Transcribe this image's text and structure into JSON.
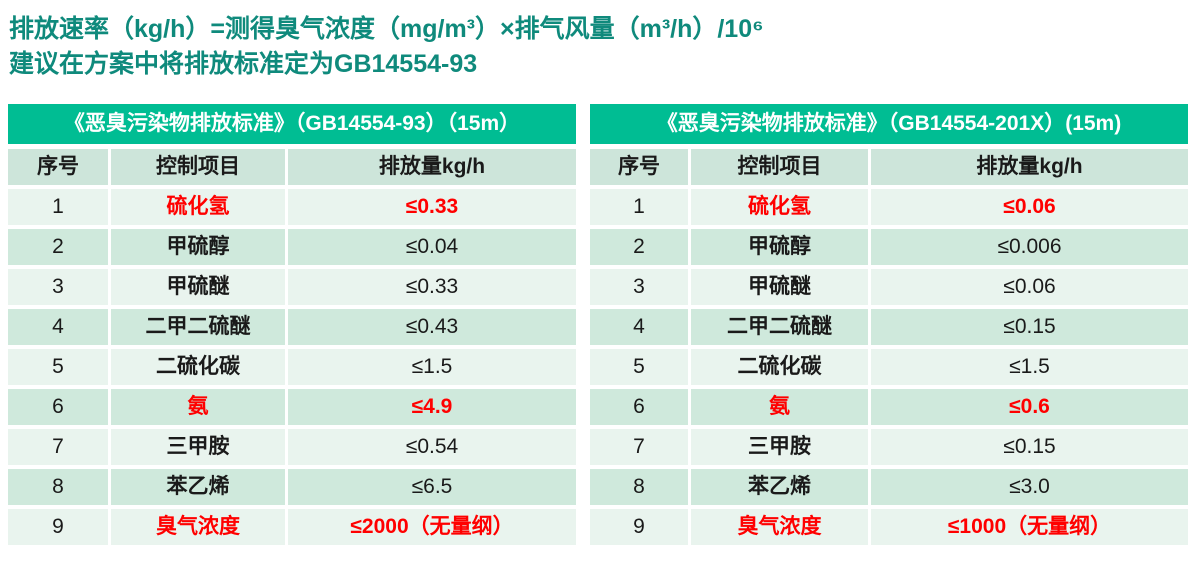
{
  "intro": {
    "line1": "排放速率（kg/h）=测得臭气浓度（mg/m³）×排气风量（m³/h）/10⁶",
    "line2": "建议在方案中将排放标准定为GB14554-93"
  },
  "colors": {
    "intro_text": "#0f8a7c",
    "table_title_bg": "#00bd93",
    "table_title_text": "#ffffff",
    "column_header_bg": "#cde5da",
    "row_odd_bg": "#e9f4ee",
    "row_even_bg": "#cfe9dc",
    "highlight_text": "#ff0000",
    "body_text": "#1a1a1a"
  },
  "tables": [
    {
      "title": "《恶臭污染物排放标准》（GB14554-93）（15m）",
      "columns": [
        "序号",
        "控制项目",
        "排放量kg/h"
      ],
      "rows": [
        {
          "no": "1",
          "item": "硫化氢",
          "value": "≤0.33",
          "highlight": true
        },
        {
          "no": "2",
          "item": "甲硫醇",
          "value": "≤0.04",
          "highlight": false
        },
        {
          "no": "3",
          "item": "甲硫醚",
          "value": "≤0.33",
          "highlight": false
        },
        {
          "no": "4",
          "item": "二甲二硫醚",
          "value": "≤0.43",
          "highlight": false
        },
        {
          "no": "5",
          "item": "二硫化碳",
          "value": "≤1.5",
          "highlight": false
        },
        {
          "no": "6",
          "item": "氨",
          "value": "≤4.9",
          "highlight": true
        },
        {
          "no": "7",
          "item": "三甲胺",
          "value": "≤0.54",
          "highlight": false
        },
        {
          "no": "8",
          "item": "苯乙烯",
          "value": "≤6.5",
          "highlight": false
        },
        {
          "no": "9",
          "item": "臭气浓度",
          "value": "≤2000（无量纲）",
          "highlight": true
        }
      ]
    },
    {
      "title": "《恶臭污染物排放标准》（GB14554-201X）(15m)",
      "columns": [
        "序号",
        "控制项目",
        "排放量kg/h"
      ],
      "rows": [
        {
          "no": "1",
          "item": "硫化氢",
          "value": "≤0.06",
          "highlight": true
        },
        {
          "no": "2",
          "item": "甲硫醇",
          "value": "≤0.006",
          "highlight": false
        },
        {
          "no": "3",
          "item": "甲硫醚",
          "value": "≤0.06",
          "highlight": false
        },
        {
          "no": "4",
          "item": "二甲二硫醚",
          "value": "≤0.15",
          "highlight": false
        },
        {
          "no": "5",
          "item": "二硫化碳",
          "value": "≤1.5",
          "highlight": false
        },
        {
          "no": "6",
          "item": "氨",
          "value": "≤0.6",
          "highlight": true
        },
        {
          "no": "7",
          "item": "三甲胺",
          "value": "≤0.15",
          "highlight": false
        },
        {
          "no": "8",
          "item": "苯乙烯",
          "value": "≤3.0",
          "highlight": false
        },
        {
          "no": "9",
          "item": "臭气浓度",
          "value": "≤1000（无量纲）",
          "highlight": true
        }
      ]
    }
  ]
}
